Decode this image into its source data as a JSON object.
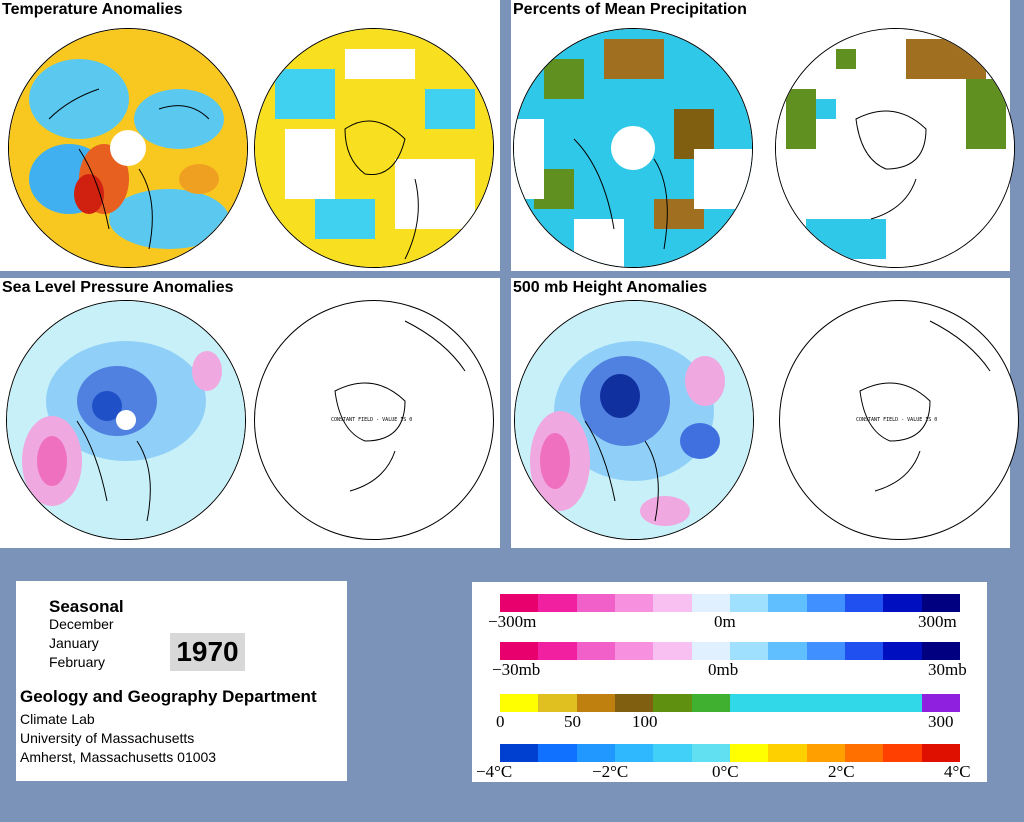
{
  "panels": {
    "temperature": {
      "title": "Temperature Anomalies"
    },
    "precipitation": {
      "title": "Percents of Mean Precipitation"
    },
    "slp": {
      "title": "Sea Level Pressure Anomalies",
      "constant_label": "CONSTANT FIELD - VALUE IS 0"
    },
    "height500": {
      "title": "500 mb Height Anomalies",
      "constant_label": "CONSTANT FIELD - VALUE IS 0"
    }
  },
  "info": {
    "season_label": "Seasonal",
    "months": [
      "December",
      "January",
      "February"
    ],
    "year": "1970",
    "department": "Geology and Geography Department",
    "lines": [
      "Climate Lab",
      "University of Massachusetts",
      "Amherst, Massachusetts 01003"
    ]
  },
  "legend": {
    "height_scale": {
      "labels": [
        "−300m",
        "0m",
        "300m"
      ],
      "colors": [
        "#e8006c",
        "#f020a0",
        "#f060c8",
        "#f890e0",
        "#f8c0f0",
        "#e0f0ff",
        "#a0e0ff",
        "#60c0ff",
        "#4090ff",
        "#2050f0",
        "#0010c0",
        "#000080"
      ]
    },
    "pressure_scale": {
      "labels": [
        "−30mb",
        "0mb",
        "30mb"
      ],
      "colors": [
        "#e8006c",
        "#f020a0",
        "#f060c8",
        "#f890e0",
        "#f8c0f0",
        "#e0f0ff",
        "#a0e0ff",
        "#60c0ff",
        "#4090ff",
        "#2050f0",
        "#0010c0",
        "#000080"
      ]
    },
    "precip_scale": {
      "labels": [
        "0",
        "50",
        "100",
        "300"
      ],
      "colors": [
        "#ffff00",
        "#e0c020",
        "#c08010",
        "#806010",
        "#609010",
        "#40b030",
        "#30d8e8",
        "#30d8e8",
        "#30d8e8",
        "#30d8e8",
        "#30d8e8",
        "#9020e0"
      ]
    },
    "temp_scale": {
      "labels": [
        "−4°C",
        "−2°C",
        "0°C",
        "2°C",
        "4°C"
      ],
      "colors": [
        "#0040d0",
        "#1070ff",
        "#2098ff",
        "#30b8ff",
        "#40d0f8",
        "#60e0f0",
        "#ffff00",
        "#ffd000",
        "#ffa000",
        "#ff7000",
        "#ff4000",
        "#e01000"
      ]
    }
  }
}
